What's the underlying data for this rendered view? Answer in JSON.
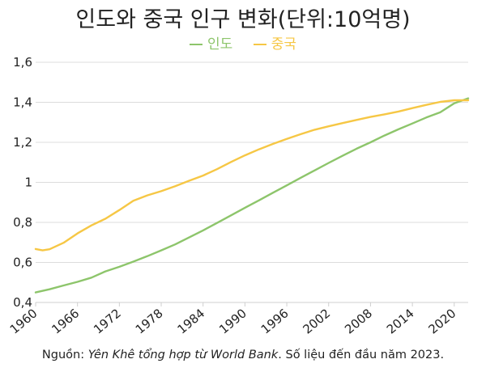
{
  "chart_data": {
    "type": "line",
    "title": "인도와 중국 인구 변화(단위:10억명)",
    "xlabel": "",
    "ylabel": "",
    "xlim": [
      1960,
      2022
    ],
    "ylim": [
      0.4,
      1.6
    ],
    "x_ticks": [
      "1960",
      "1966",
      "1972",
      "1978",
      "1984",
      "1990",
      "1996",
      "2002",
      "2008",
      "2014",
      "2020"
    ],
    "y_ticks": [
      "0,4",
      "0,6",
      "0,8",
      "1",
      "1,2",
      "1,4",
      "1,6"
    ],
    "y_tick_values": [
      0.4,
      0.6,
      0.8,
      1.0,
      1.2,
      1.4,
      1.6
    ],
    "grid": "horizontal",
    "legend_position": "top-center",
    "series": [
      {
        "name": "인도",
        "color": "#8dc56b",
        "x": [
          1960,
          1962,
          1964,
          1966,
          1968,
          1970,
          1972,
          1974,
          1976,
          1978,
          1980,
          1982,
          1984,
          1986,
          1988,
          1990,
          1992,
          1994,
          1996,
          1998,
          2000,
          2002,
          2004,
          2006,
          2008,
          2010,
          2012,
          2014,
          2016,
          2018,
          2020,
          2022
        ],
        "values": [
          0.45,
          0.466,
          0.485,
          0.503,
          0.524,
          0.555,
          0.578,
          0.604,
          0.631,
          0.66,
          0.69,
          0.725,
          0.76,
          0.797,
          0.835,
          0.873,
          0.91,
          0.948,
          0.985,
          1.023,
          1.06,
          1.097,
          1.133,
          1.168,
          1.2,
          1.234,
          1.265,
          1.294,
          1.324,
          1.35,
          1.395,
          1.42
        ]
      },
      {
        "name": "중국",
        "color": "#f6c745",
        "x": [
          1960,
          1961,
          1962,
          1964,
          1966,
          1968,
          1970,
          1972,
          1974,
          1976,
          1978,
          1980,
          1982,
          1984,
          1986,
          1988,
          1990,
          1992,
          1994,
          1996,
          1998,
          2000,
          2002,
          2004,
          2006,
          2008,
          2010,
          2012,
          2014,
          2016,
          2018,
          2020,
          2022
        ],
        "values": [
          0.667,
          0.66,
          0.666,
          0.698,
          0.745,
          0.785,
          0.818,
          0.862,
          0.908,
          0.935,
          0.956,
          0.981,
          1.008,
          1.034,
          1.066,
          1.102,
          1.135,
          1.165,
          1.192,
          1.217,
          1.241,
          1.263,
          1.28,
          1.296,
          1.312,
          1.327,
          1.34,
          1.354,
          1.371,
          1.387,
          1.402,
          1.41,
          1.41
        ]
      }
    ]
  },
  "footnote": {
    "prefix": "Nguồn: ",
    "italic": "Yên Khê tổng hợp từ World Bank",
    "suffix": ". Số liệu đến đầu năm 2023."
  }
}
